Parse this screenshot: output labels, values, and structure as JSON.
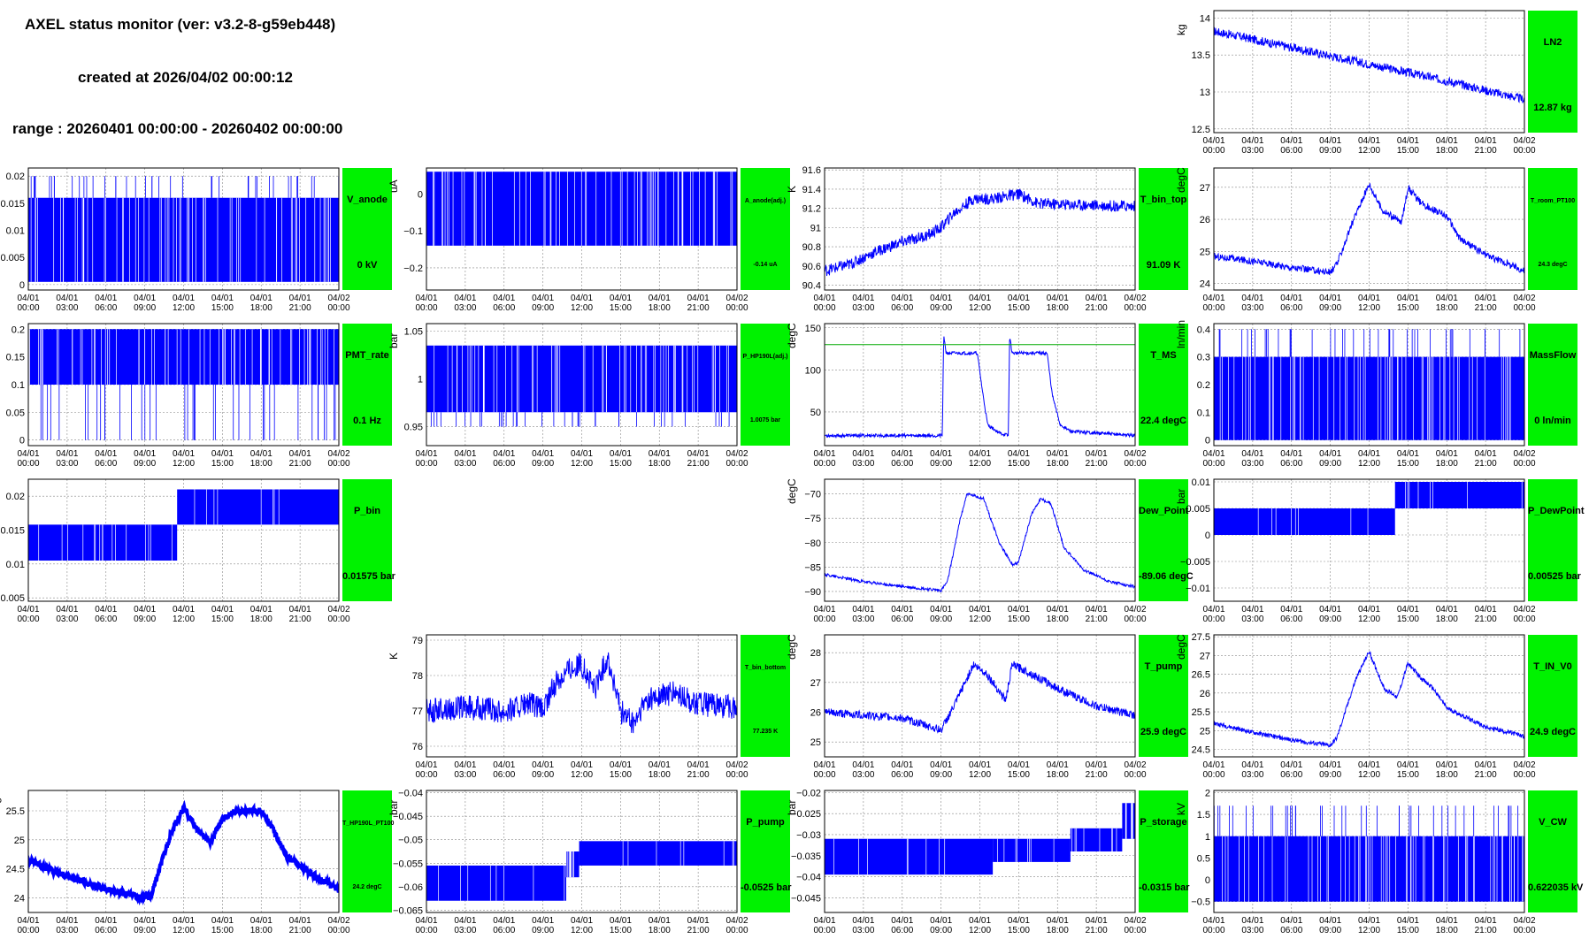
{
  "header": {
    "title": "AXEL status monitor (ver: v3.2-8-g59eb448)",
    "created": "created at 2026/04/02 00:00:12",
    "range": "range : 20260401 00:00:00 - 20260402 00:00:00"
  },
  "time_labels": [
    [
      "04/01",
      "00:00"
    ],
    [
      "04/01",
      "03:00"
    ],
    [
      "04/01",
      "06:00"
    ],
    [
      "04/01",
      "09:00"
    ],
    [
      "04/01",
      "12:00"
    ],
    [
      "04/01",
      "15:00"
    ],
    [
      "04/01",
      "18:00"
    ],
    [
      "04/01",
      "21:00"
    ],
    [
      "04/02",
      "00:00"
    ]
  ],
  "colors": {
    "trace": "#0000ff",
    "badge": "#00f200",
    "ref_line": "#00aa00",
    "grid": "#888888"
  },
  "chart_data": [
    {
      "id": "LN2",
      "type": "line",
      "name": "LN2",
      "value": "12.87 kg",
      "unit": "kg",
      "ylim": [
        12.45,
        14.1
      ],
      "yticks": [
        12.5,
        13,
        13.5,
        14
      ],
      "shape": [
        [
          0,
          13.82
        ],
        [
          2,
          13.75
        ],
        [
          6,
          13.6
        ],
        [
          10,
          13.45
        ],
        [
          14,
          13.3
        ],
        [
          18,
          13.15
        ],
        [
          22,
          12.98
        ],
        [
          24,
          12.9
        ]
      ],
      "band": 0.12
    },
    {
      "id": "V_anode",
      "type": "line",
      "name": "V_anode",
      "value": "0 kV",
      "unit": "kV",
      "ylim": [
        -0.001,
        0.0215
      ],
      "yticks": [
        0,
        0.005,
        0.01,
        0.015,
        0.02
      ],
      "band_fill": [
        0.0005,
        0.016
      ],
      "spikes_to": 0.02
    },
    {
      "id": "A_anode",
      "type": "line",
      "name": "A_anode(adj.)",
      "value": "-0.14 uA",
      "unit": "uA",
      "ylim": [
        -0.26,
        0.07
      ],
      "yticks": [
        -0.2,
        -0.1,
        0
      ],
      "ytick_labels": [
        "−0.2",
        "−0.1",
        "0"
      ],
      "band_fill": [
        -0.14,
        0.06
      ]
    },
    {
      "id": "T_bin_top",
      "type": "line",
      "name": "T_bin_top",
      "value": "91.09 K",
      "unit": "K",
      "ylim": [
        90.35,
        91.62
      ],
      "yticks": [
        90.4,
        90.6,
        90.8,
        91,
        91.2,
        91.4,
        91.6
      ],
      "shape": [
        [
          0,
          90.55
        ],
        [
          2,
          90.62
        ],
        [
          4,
          90.75
        ],
        [
          6,
          90.85
        ],
        [
          8,
          90.92
        ],
        [
          9,
          91.0
        ],
        [
          10,
          91.15
        ],
        [
          11.5,
          91.3
        ],
        [
          13,
          91.3
        ],
        [
          15,
          91.35
        ],
        [
          16.5,
          91.25
        ],
        [
          24,
          91.22
        ]
      ],
      "band": 0.12
    },
    {
      "id": "T_room_PT100",
      "type": "line",
      "name": "T_room_PT100",
      "value": "24.3 degC",
      "unit": "degC",
      "ylim": [
        23.8,
        27.6
      ],
      "yticks": [
        24,
        25,
        26,
        27
      ],
      "shape": [
        [
          0,
          24.85
        ],
        [
          3,
          24.7
        ],
        [
          6,
          24.5
        ],
        [
          9,
          24.35
        ],
        [
          9.5,
          24.6
        ],
        [
          11,
          26.2
        ],
        [
          12,
          27.1
        ],
        [
          13,
          26.3
        ],
        [
          14.5,
          25.9
        ],
        [
          15,
          27.0
        ],
        [
          16,
          26.5
        ],
        [
          18,
          26.1
        ],
        [
          19,
          25.4
        ],
        [
          21,
          24.9
        ],
        [
          24,
          24.4
        ]
      ],
      "band": 0.22
    },
    {
      "id": "PMT_rate",
      "type": "line",
      "name": "PMT_rate",
      "value": "0.1 Hz",
      "unit": "Hz",
      "ylim": [
        -0.01,
        0.21
      ],
      "yticks": [
        0,
        0.05,
        0.1,
        0.15,
        0.2
      ],
      "band_fill": [
        0.1,
        0.2
      ],
      "spikes_to": 0.0
    },
    {
      "id": "P_HP190L",
      "type": "line",
      "name": "P_HP190L(adj.)",
      "value": "1.0075 bar",
      "unit": "bar",
      "ylim": [
        0.93,
        1.058
      ],
      "yticks": [
        0.95,
        1,
        1.05
      ],
      "band_fill": [
        0.965,
        1.035
      ],
      "spikes_to": 0.95
    },
    {
      "id": "T_MS",
      "type": "line",
      "name": "T_MS",
      "value": "22.4 degC",
      "unit": "degC",
      "ylim": [
        10,
        155
      ],
      "yticks": [
        50,
        100,
        150
      ],
      "ref_line": 130,
      "shape": [
        [
          0,
          22
        ],
        [
          9.1,
          22
        ],
        [
          9.2,
          140
        ],
        [
          9.4,
          120
        ],
        [
          11.8,
          120
        ],
        [
          12.2,
          75
        ],
        [
          12.6,
          35
        ],
        [
          13.5,
          25
        ],
        [
          14.2,
          22
        ],
        [
          14.3,
          140
        ],
        [
          14.5,
          120
        ],
        [
          17.2,
          120
        ],
        [
          17.6,
          70
        ],
        [
          18.2,
          35
        ],
        [
          19,
          27
        ],
        [
          24,
          22
        ]
      ],
      "band": 4
    },
    {
      "id": "MassFlow",
      "type": "line",
      "name": "MassFlow",
      "value": "0 ln/min",
      "unit": "ln/min",
      "ylim": [
        -0.02,
        0.42
      ],
      "yticks": [
        0,
        0.1,
        0.2,
        0.3,
        0.4
      ],
      "band_fill": [
        0.0,
        0.3
      ],
      "spikes_to": 0.4
    },
    {
      "id": "P_bin",
      "type": "line",
      "name": "P_bin",
      "value": "0.01575 bar",
      "unit": "bar",
      "ylim": [
        0.0045,
        0.0225
      ],
      "yticks": [
        0.005,
        0.01,
        0.015,
        0.02
      ],
      "steps": [
        [
          0,
          0.0105,
          0.0158
        ],
        [
          5.7,
          0.0105,
          0.0158
        ],
        [
          11.5,
          0.0158,
          0.021
        ],
        [
          24,
          0.0158,
          0.021
        ]
      ]
    },
    {
      "id": "Dew_Point",
      "type": "line",
      "name": "Dew_Point",
      "value": "-89.06 degC",
      "unit": "degC",
      "ylim": [
        -92,
        -67
      ],
      "yticks": [
        -90,
        -85,
        -80,
        -75,
        -70
      ],
      "ytick_labels": [
        "−90",
        "−85",
        "−80",
        "−75",
        "−70"
      ],
      "shape": [
        [
          0,
          -86.5
        ],
        [
          3,
          -88
        ],
        [
          6,
          -89
        ],
        [
          9,
          -89.8
        ],
        [
          9.5,
          -88
        ],
        [
          10.5,
          -75
        ],
        [
          11,
          -70
        ],
        [
          12.3,
          -71
        ],
        [
          13.5,
          -80
        ],
        [
          14.5,
          -84.5
        ],
        [
          15,
          -84
        ],
        [
          16,
          -74
        ],
        [
          16.7,
          -71
        ],
        [
          17.5,
          -72
        ],
        [
          18.5,
          -81
        ],
        [
          20,
          -85.5
        ],
        [
          22,
          -88
        ],
        [
          24,
          -89
        ]
      ],
      "band": 0.6
    },
    {
      "id": "P_DewPoint",
      "type": "line",
      "name": "P_DewPoint",
      "value": "0.00525 bar",
      "unit": "bar",
      "ylim": [
        -0.0125,
        0.0105
      ],
      "yticks": [
        -0.01,
        -0.005,
        0,
        0.005,
        0.01
      ],
      "ytick_labels": [
        "−0.01",
        "−0.005",
        "0",
        "0.005",
        "0.01"
      ],
      "steps": [
        [
          0,
          0.0,
          0.005
        ],
        [
          14,
          0.0,
          0.005
        ],
        [
          14,
          0.005,
          0.01
        ],
        [
          24,
          0.005,
          0.01
        ]
      ]
    },
    {
      "id": "T_bin_bottom",
      "type": "line",
      "name": "T_bin_bottom",
      "value": "77.235 K",
      "unit": "K",
      "ylim": [
        75.7,
        79.15
      ],
      "yticks": [
        76,
        77,
        78,
        79
      ],
      "shape": [
        [
          0,
          77.0
        ],
        [
          3,
          77.1
        ],
        [
          6,
          77.0
        ],
        [
          8,
          77.2
        ],
        [
          9,
          77.0
        ],
        [
          10,
          77.8
        ],
        [
          11,
          78.2
        ],
        [
          12,
          78.3
        ],
        [
          13,
          77.6
        ],
        [
          14,
          78.5
        ],
        [
          15,
          77.0
        ],
        [
          16,
          76.6
        ],
        [
          17,
          77.3
        ],
        [
          19,
          77.5
        ],
        [
          21,
          77.2
        ],
        [
          24,
          77.1
        ]
      ],
      "band": 0.7
    },
    {
      "id": "T_pump",
      "type": "line",
      "name": "T_pump",
      "value": "25.9 degC",
      "unit": "degC",
      "ylim": [
        24.5,
        28.6
      ],
      "yticks": [
        25,
        26,
        27,
        28
      ],
      "shape": [
        [
          0,
          26.0
        ],
        [
          3,
          25.9
        ],
        [
          6,
          25.8
        ],
        [
          9,
          25.4
        ],
        [
          10,
          26.2
        ],
        [
          11.5,
          27.6
        ],
        [
          12.5,
          27.3
        ],
        [
          14,
          26.4
        ],
        [
          14.5,
          27.6
        ],
        [
          15.5,
          27.4
        ],
        [
          18,
          26.8
        ],
        [
          21,
          26.2
        ],
        [
          24,
          25.9
        ]
      ],
      "band": 0.28
    },
    {
      "id": "T_IN_V0",
      "type": "line",
      "name": "T_IN_V0",
      "value": "24.9 degC",
      "unit": "degC",
      "ylim": [
        24.3,
        27.55
      ],
      "yticks": [
        24.5,
        25,
        25.5,
        26,
        26.5,
        27,
        27.5
      ],
      "shape": [
        [
          0,
          25.2
        ],
        [
          3,
          24.95
        ],
        [
          6,
          24.75
        ],
        [
          9,
          24.6
        ],
        [
          9.5,
          24.8
        ],
        [
          11,
          26.4
        ],
        [
          12,
          27.1
        ],
        [
          13.2,
          26.1
        ],
        [
          14.2,
          25.9
        ],
        [
          15,
          26.8
        ],
        [
          16,
          26.4
        ],
        [
          17,
          26.1
        ],
        [
          18,
          25.6
        ],
        [
          21,
          25.1
        ],
        [
          24,
          24.85
        ]
      ],
      "band": 0.12
    },
    {
      "id": "T_HP190L_PT100",
      "type": "line",
      "name": "T_HP190L_PT100",
      "value": "24.2 degC",
      "unit": "degC",
      "ylim": [
        23.75,
        25.85
      ],
      "yticks": [
        24,
        24.5,
        25,
        25.5
      ],
      "shape": [
        [
          0,
          24.65
        ],
        [
          2,
          24.45
        ],
        [
          4,
          24.3
        ],
        [
          6,
          24.15
        ],
        [
          9,
          24.0
        ],
        [
          9.5,
          24.05
        ],
        [
          11,
          25.1
        ],
        [
          12,
          25.55
        ],
        [
          13,
          25.2
        ],
        [
          14,
          24.95
        ],
        [
          15,
          25.35
        ],
        [
          16,
          25.5
        ],
        [
          18,
          25.5
        ],
        [
          19,
          25.15
        ],
        [
          20,
          24.7
        ],
        [
          22,
          24.4
        ],
        [
          24,
          24.15
        ]
      ],
      "band": 0.1,
      "steps_only": true
    },
    {
      "id": "P_pump",
      "type": "line",
      "name": "P_pump",
      "value": "-0.0525 bar",
      "unit": "bar",
      "ylim": [
        -0.0655,
        -0.0395
      ],
      "yticks": [
        -0.065,
        -0.06,
        -0.055,
        -0.05,
        -0.045,
        -0.04
      ],
      "ytick_labels": [
        "−0.065",
        "−0.06",
        "−0.055",
        "−0.05",
        "−0.045",
        "−0.04"
      ],
      "steps": [
        [
          0,
          -0.063,
          -0.0555
        ],
        [
          10.8,
          -0.063,
          -0.0555
        ],
        [
          10.8,
          -0.058,
          -0.0525
        ],
        [
          11.8,
          -0.058,
          -0.0525
        ],
        [
          11.8,
          -0.0555,
          -0.0503
        ],
        [
          24,
          -0.0555,
          -0.0503
        ]
      ]
    },
    {
      "id": "P_storage",
      "type": "line",
      "name": "P_storage",
      "value": "-0.0315 bar",
      "unit": "bar",
      "ylim": [
        -0.0485,
        -0.0195
      ],
      "yticks": [
        -0.045,
        -0.04,
        -0.035,
        -0.03,
        -0.025,
        -0.02
      ],
      "ytick_labels": [
        "−0.045",
        "−0.04",
        "−0.035",
        "−0.03",
        "−0.025",
        "−0.02"
      ],
      "steps": [
        [
          0,
          -0.0395,
          -0.031
        ],
        [
          13,
          -0.0395,
          -0.031
        ],
        [
          13,
          -0.0365,
          -0.031
        ],
        [
          19,
          -0.0365,
          -0.031
        ],
        [
          19,
          -0.034,
          -0.0285
        ],
        [
          23,
          -0.034,
          -0.0285
        ],
        [
          23,
          -0.031,
          -0.0225
        ],
        [
          24,
          -0.031,
          -0.0225
        ]
      ]
    },
    {
      "id": "V_CW",
      "type": "line",
      "name": "V_CW",
      "value": "0.622035 kV",
      "unit": "kV",
      "ylim": [
        -0.75,
        2.05
      ],
      "yticks": [
        -0.5,
        0,
        0.5,
        1,
        1.5,
        2
      ],
      "ytick_labels": [
        "−0.5",
        "0",
        "0.5",
        "1",
        "1.5",
        "2"
      ],
      "band_fill": [
        -0.5,
        1.0
      ],
      "spikes_to": 1.7
    }
  ]
}
